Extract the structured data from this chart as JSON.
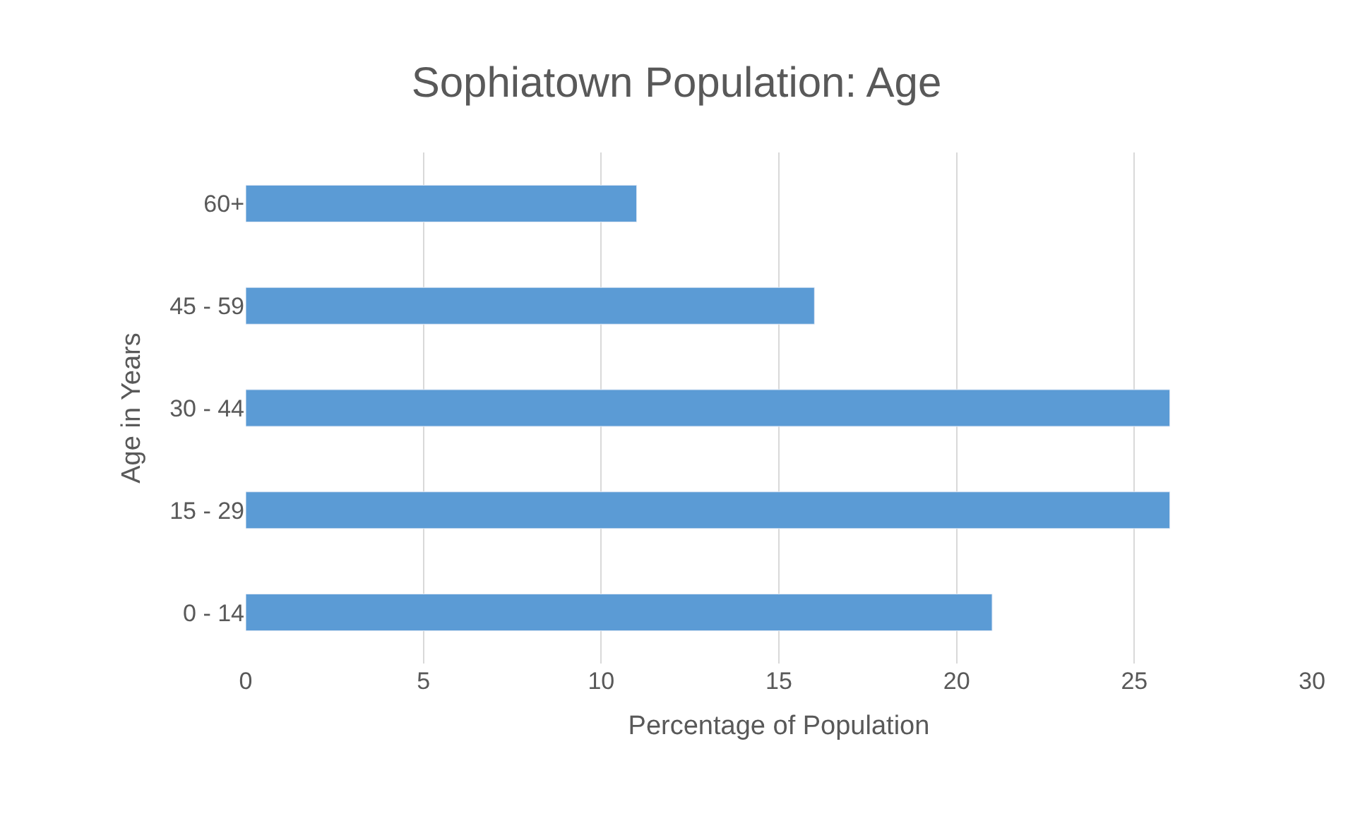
{
  "chart_data": {
    "type": "bar",
    "orientation": "horizontal",
    "title": "Sophiatown Population: Age",
    "xlabel": "Percentage of Population",
    "ylabel": "Age in Years",
    "categories": [
      "60+",
      "45 - 59",
      "30 - 44",
      "15 - 29",
      "0 - 14"
    ],
    "values": [
      11,
      16,
      26,
      26,
      21
    ],
    "color": "#5b9bd5",
    "xlim": [
      0,
      30
    ],
    "xticks": [
      0,
      5,
      10,
      15,
      20,
      25,
      30
    ],
    "grid": "x"
  }
}
